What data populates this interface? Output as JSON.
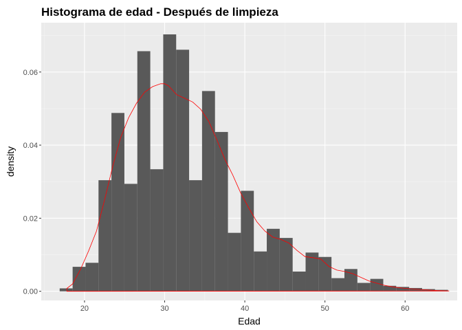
{
  "chart_data": {
    "type": "histogram",
    "title": "Histograma de edad - Después de limpieza",
    "xlabel": "Edad",
    "ylabel": "density",
    "xlim": [
      14.6,
      66.5
    ],
    "ylim": [
      -0.0025,
      0.0735
    ],
    "x_ticks": [
      20,
      30,
      40,
      50,
      60
    ],
    "y_ticks": [
      0.0,
      0.02,
      0.04,
      0.06
    ],
    "x_tick_labels": [
      "20",
      "30",
      "40",
      "50",
      "60"
    ],
    "y_tick_labels": [
      "0.00",
      "0.02",
      "0.04",
      "0.06"
    ],
    "grid": true,
    "bar_color": "#595959",
    "density_color": "#ff0000",
    "panel_color": "#ebebeb",
    "bins": {
      "start": 16.9,
      "width": 1.615,
      "values": [
        0.0008,
        0.0067,
        0.0078,
        0.0304,
        0.0488,
        0.0294,
        0.0657,
        0.0334,
        0.0703,
        0.0661,
        0.0304,
        0.0548,
        0.0436,
        0.016,
        0.0275,
        0.0109,
        0.0171,
        0.0146,
        0.0054,
        0.0106,
        0.0094,
        0.0036,
        0.0061,
        0.0023,
        0.0034,
        0.0015,
        0.0012,
        0.0009,
        0.0006,
        0.0004
      ]
    },
    "density_curve": {
      "x": [
        17.8,
        18.5,
        19.5,
        20.5,
        21.5,
        22.5,
        23.5,
        24.5,
        25.5,
        26.5,
        27.5,
        28.5,
        29.5,
        30.0,
        30.5,
        31.5,
        32.5,
        33.5,
        34.5,
        35.5,
        36.5,
        37.5,
        38.5,
        39.5,
        40.5,
        41.5,
        42.5,
        43.5,
        44.5,
        45.5,
        46.5,
        47.5,
        48.5,
        49.5,
        50.5,
        51.5,
        52.5,
        53.5,
        54.5,
        55.5,
        56.5,
        57.5,
        58.5,
        60,
        62,
        64,
        65.5
      ],
      "y": [
        0.0008,
        0.002,
        0.006,
        0.011,
        0.0165,
        0.025,
        0.034,
        0.042,
        0.0475,
        0.0515,
        0.0545,
        0.056,
        0.0568,
        0.0568,
        0.0562,
        0.0538,
        0.0528,
        0.0518,
        0.0498,
        0.0465,
        0.0415,
        0.0362,
        0.0318,
        0.0268,
        0.0228,
        0.019,
        0.0165,
        0.0148,
        0.0142,
        0.0132,
        0.0112,
        0.0095,
        0.0092,
        0.0088,
        0.0068,
        0.0058,
        0.0054,
        0.0048,
        0.0038,
        0.0028,
        0.0022,
        0.0016,
        0.0012,
        0.0008,
        0.0005,
        0.0002,
        0.0001
      ]
    }
  }
}
